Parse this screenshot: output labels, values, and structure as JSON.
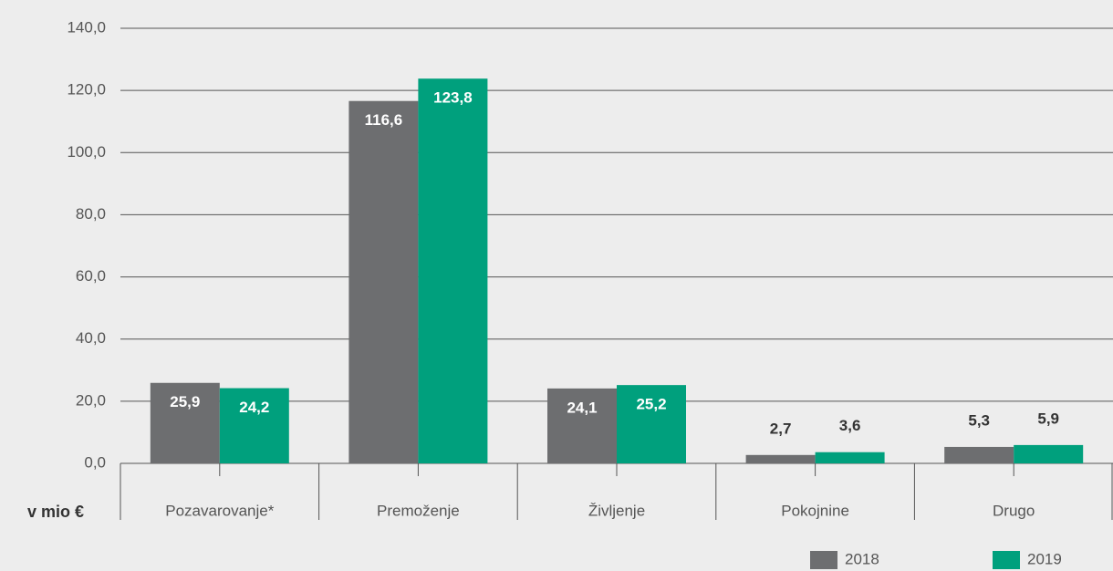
{
  "chart_data": {
    "type": "bar",
    "categories": [
      "Pozavarovanje*",
      "Premoženje",
      "Življenje",
      "Pokojnine",
      "Drugo"
    ],
    "series": [
      {
        "name": "2018",
        "color": "#6d6e70",
        "values": [
          25.9,
          116.6,
          24.1,
          2.7,
          5.3
        ],
        "value_labels": [
          "25,9",
          "116,6",
          "24,1",
          "2,7",
          "5,3"
        ]
      },
      {
        "name": "2019",
        "color": "#00a07d",
        "values": [
          24.2,
          123.8,
          25.2,
          3.6,
          5.9
        ],
        "value_labels": [
          "24,2",
          "123,8",
          "25,2",
          "3,6",
          "5,9"
        ]
      }
    ],
    "ylim": [
      0,
      140
    ],
    "yticks": [
      {
        "value": 0,
        "label": "0,0"
      },
      {
        "value": 20,
        "label": "20,0"
      },
      {
        "value": 40,
        "label": "40,0"
      },
      {
        "value": 60,
        "label": "60,0"
      },
      {
        "value": 80,
        "label": "80,0"
      },
      {
        "value": 100,
        "label": "100,0"
      },
      {
        "value": 120,
        "label": "120,0"
      },
      {
        "value": 140,
        "label": "140,0"
      }
    ],
    "y_axis_label": "v mio €",
    "grid": true
  }
}
